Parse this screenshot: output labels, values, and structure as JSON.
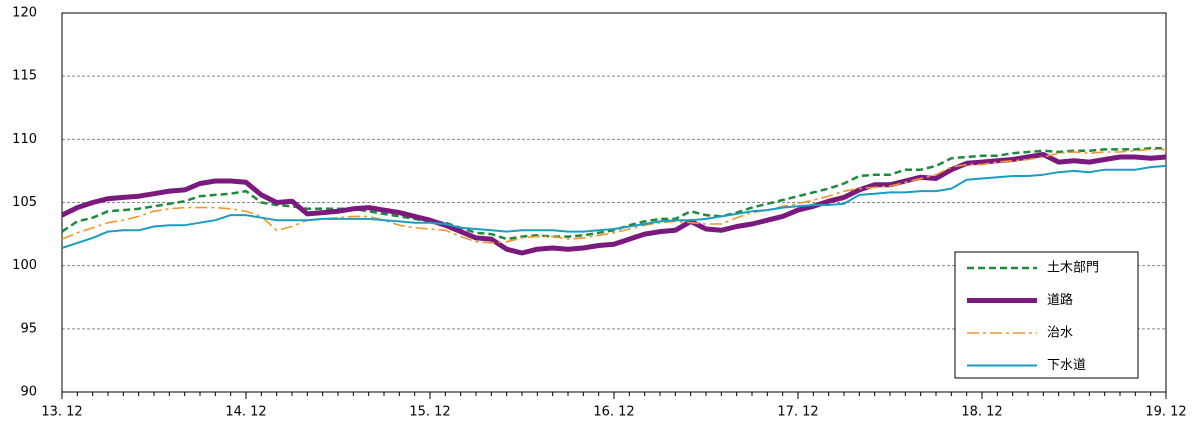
{
  "chart_data": {
    "type": "line",
    "categories": [
      "13. 12",
      null,
      null,
      null,
      null,
      null,
      null,
      null,
      null,
      null,
      null,
      null,
      "14. 12",
      null,
      null,
      null,
      null,
      null,
      null,
      null,
      null,
      null,
      null,
      null,
      "15. 12",
      null,
      null,
      null,
      null,
      null,
      null,
      null,
      null,
      null,
      null,
      null,
      "16. 12",
      null,
      null,
      null,
      null,
      null,
      null,
      null,
      null,
      null,
      null,
      null,
      "17. 12",
      null,
      null,
      null,
      null,
      null,
      null,
      null,
      null,
      null,
      null,
      null,
      "18. 12",
      null,
      null,
      null,
      null,
      null,
      null,
      null,
      null,
      null,
      null,
      null,
      "19. 12"
    ],
    "series": [
      {
        "name": "土木部門",
        "color": "#1e8a3c",
        "line_style": "dashed",
        "values": [
          102.7,
          103.5,
          103.8,
          104.3,
          104.4,
          104.5,
          104.7,
          104.9,
          105.1,
          105.5,
          105.6,
          105.7,
          105.9,
          105.0,
          104.8,
          104.7,
          104.5,
          104.5,
          104.5,
          104.5,
          104.3,
          104.1,
          103.9,
          103.7,
          103.5,
          103.4,
          103.0,
          102.6,
          102.5,
          102.1,
          102.3,
          102.4,
          102.3,
          102.3,
          102.4,
          102.6,
          102.8,
          103.2,
          103.5,
          103.7,
          103.7,
          104.3,
          104.0,
          103.9,
          104.2,
          104.6,
          104.9,
          105.2,
          105.5,
          105.8,
          106.1,
          106.5,
          107.1,
          107.2,
          107.2,
          107.6,
          107.6,
          107.9,
          108.5,
          108.6,
          108.7,
          108.7,
          108.9,
          109.0,
          109.1,
          109.0,
          109.1,
          109.1,
          109.2,
          109.2,
          109.2,
          109.3,
          109.3
        ]
      },
      {
        "name": "道路",
        "color": "#7b1a7e",
        "line_style": "thick",
        "values": [
          104.0,
          104.6,
          105.0,
          105.3,
          105.4,
          105.5,
          105.7,
          105.9,
          106.0,
          106.5,
          106.7,
          106.7,
          106.6,
          105.6,
          105.0,
          105.1,
          104.1,
          104.2,
          104.3,
          104.5,
          104.6,
          104.4,
          104.2,
          103.9,
          103.6,
          103.2,
          102.7,
          102.2,
          102.1,
          101.3,
          101.0,
          101.3,
          101.4,
          101.3,
          101.4,
          101.6,
          101.7,
          102.1,
          102.5,
          102.7,
          102.8,
          103.5,
          102.9,
          102.8,
          103.1,
          103.3,
          103.6,
          103.9,
          104.4,
          104.7,
          105.1,
          105.4,
          106.0,
          106.4,
          106.4,
          106.7,
          107.0,
          106.9,
          107.6,
          108.1,
          108.2,
          108.3,
          108.4,
          108.6,
          108.8,
          108.2,
          108.3,
          108.2,
          108.4,
          108.6,
          108.6,
          108.5,
          108.6
        ]
      },
      {
        "name": "治水",
        "color": "#f0962e",
        "line_style": "dashdot",
        "values": [
          102.1,
          102.6,
          103.0,
          103.4,
          103.6,
          103.9,
          104.3,
          104.5,
          104.6,
          104.6,
          104.6,
          104.5,
          104.3,
          103.9,
          102.8,
          103.1,
          103.6,
          103.7,
          103.8,
          103.9,
          103.9,
          103.6,
          103.2,
          103.0,
          102.9,
          102.8,
          102.3,
          101.9,
          101.8,
          101.9,
          102.2,
          102.3,
          102.3,
          102.1,
          102.2,
          102.4,
          102.6,
          102.9,
          103.2,
          103.4,
          103.5,
          103.4,
          103.3,
          103.3,
          103.8,
          104.2,
          104.4,
          104.7,
          104.9,
          105.2,
          105.5,
          105.9,
          106.1,
          106.2,
          106.3,
          106.6,
          106.9,
          107.2,
          107.8,
          108.0,
          108.0,
          108.2,
          108.3,
          108.4,
          108.6,
          108.9,
          109.0,
          108.9,
          109.0,
          109.0,
          109.1,
          109.2,
          109.2
        ]
      },
      {
        "name": "下水道",
        "color": "#1a9dc0",
        "line_style": "solid",
        "values": [
          101.4,
          101.8,
          102.2,
          102.7,
          102.8,
          102.8,
          103.1,
          103.2,
          103.2,
          103.4,
          103.6,
          104.0,
          104.0,
          103.8,
          103.6,
          103.6,
          103.6,
          103.7,
          103.7,
          103.7,
          103.7,
          103.6,
          103.5,
          103.4,
          103.4,
          103.3,
          103.0,
          102.9,
          102.8,
          102.7,
          102.8,
          102.8,
          102.8,
          102.7,
          102.7,
          102.8,
          102.9,
          103.1,
          103.3,
          103.5,
          103.6,
          103.6,
          103.7,
          103.9,
          104.1,
          104.3,
          104.4,
          104.6,
          104.7,
          104.8,
          104.8,
          104.9,
          105.6,
          105.7,
          105.8,
          105.8,
          105.9,
          105.9,
          106.1,
          106.8,
          106.9,
          107.0,
          107.1,
          107.1,
          107.2,
          107.4,
          107.5,
          107.4,
          107.6,
          107.6,
          107.6,
          107.8,
          107.9
        ]
      }
    ],
    "ylim": [
      90,
      120
    ],
    "yticks": [
      90,
      95,
      100,
      105,
      110,
      115,
      120
    ],
    "grid": true,
    "legend": "lower right"
  }
}
